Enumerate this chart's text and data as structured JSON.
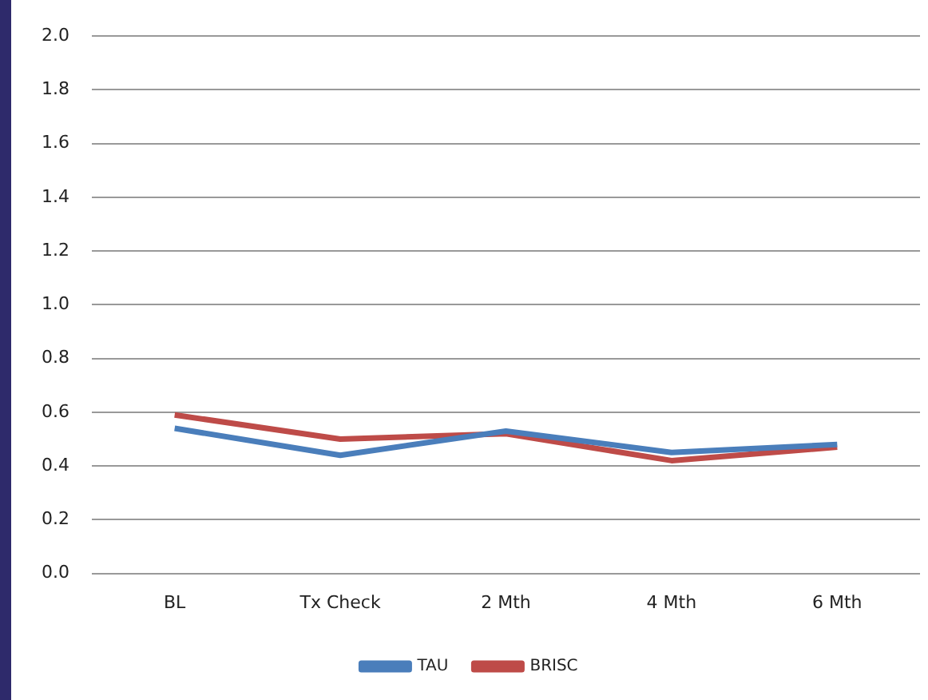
{
  "chart_data": {
    "type": "line",
    "categories": [
      "BL",
      "Tx Check",
      "2 Mth",
      "4 Mth",
      "6 Mth"
    ],
    "series": [
      {
        "name": "TAU",
        "color": "#4a7ebb",
        "values": [
          0.54,
          0.44,
          0.53,
          0.45,
          0.48
        ]
      },
      {
        "name": "BRISC",
        "color": "#be4b48",
        "values": [
          0.59,
          0.5,
          0.52,
          0.42,
          0.47
        ]
      }
    ],
    "ylim": [
      0,
      2
    ],
    "yticks": [
      {
        "value": 0,
        "label": "0.0"
      },
      0.2,
      0.4,
      0.6,
      0.8,
      {
        "value": 1,
        "label": "1.0"
      },
      1.2,
      1.4,
      1.6,
      1.8,
      {
        "value": 2,
        "label": "2.0"
      }
    ],
    "grid": "y",
    "legend": "bottom",
    "marker": "none",
    "line_style": "solid"
  }
}
